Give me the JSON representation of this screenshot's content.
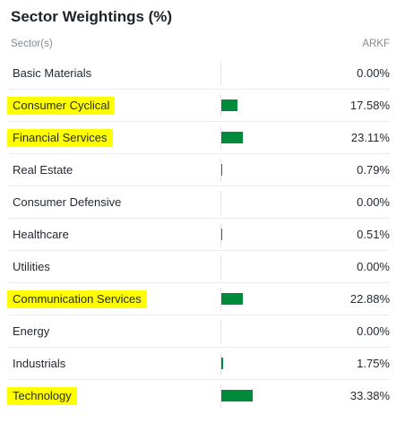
{
  "title": "Sector Weightings (%)",
  "columns": {
    "sector": "Sector(s)",
    "fund": "ARKF"
  },
  "colors": {
    "bar": "#008a3b",
    "highlight": "#ffff00"
  },
  "rows": [
    {
      "name": "Basic Materials",
      "value": "0.00%",
      "pct": 0.0,
      "highlighted": false
    },
    {
      "name": "Consumer Cyclical",
      "value": "17.58%",
      "pct": 17.58,
      "highlighted": true
    },
    {
      "name": "Financial Services",
      "value": "23.11%",
      "pct": 23.11,
      "highlighted": true
    },
    {
      "name": "Real Estate",
      "value": "0.79%",
      "pct": 0.79,
      "highlighted": false
    },
    {
      "name": "Consumer Defensive",
      "value": "0.00%",
      "pct": 0.0,
      "highlighted": false
    },
    {
      "name": "Healthcare",
      "value": "0.51%",
      "pct": 0.51,
      "highlighted": false
    },
    {
      "name": "Utilities",
      "value": "0.00%",
      "pct": 0.0,
      "highlighted": false
    },
    {
      "name": "Communication Services",
      "value": "22.88%",
      "pct": 22.88,
      "highlighted": true
    },
    {
      "name": "Energy",
      "value": "0.00%",
      "pct": 0.0,
      "highlighted": false
    },
    {
      "name": "Industrials",
      "value": "1.75%",
      "pct": 1.75,
      "highlighted": false
    },
    {
      "name": "Technology",
      "value": "33.38%",
      "pct": 33.38,
      "highlighted": true
    }
  ]
}
